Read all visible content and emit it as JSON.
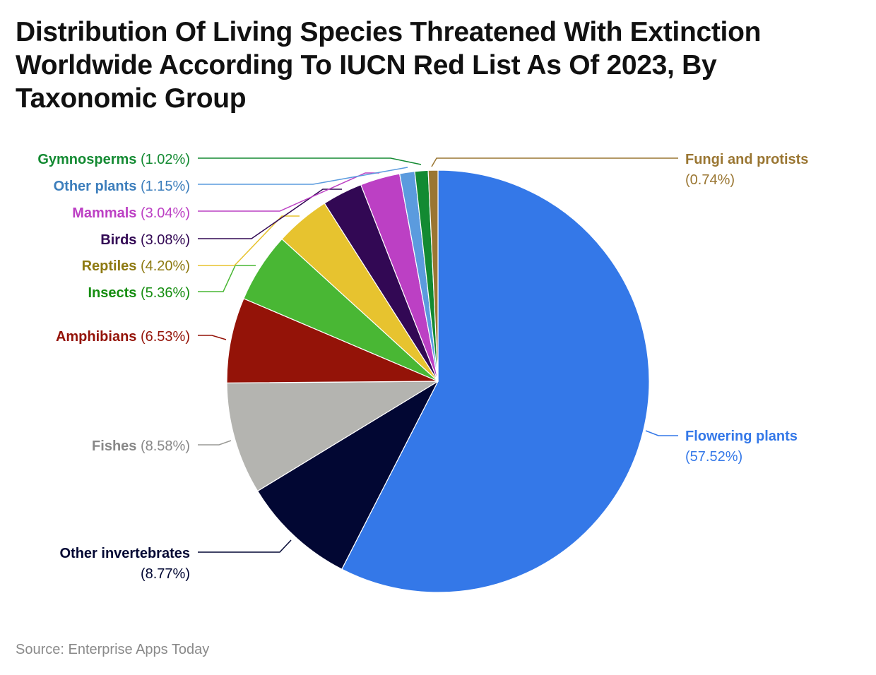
{
  "title": "Distribution Of Living Species Threatened With Extinction Worldwide According To IUCN Red List As Of 2023, By Taxonomic Group",
  "source": "Source: Enterprise Apps Today",
  "chart_data": {
    "type": "pie",
    "legend": "none (labels with leader lines)",
    "slices": [
      {
        "label": "Flowering plants",
        "value": 57.52,
        "display": "(57.52%)",
        "color": "#3478E8",
        "text_color": "#3478E8"
      },
      {
        "label": "Other invertebrates",
        "value": 8.77,
        "display": "(8.77%)",
        "color": "#020733",
        "text_color": "#020733"
      },
      {
        "label": "Fishes",
        "value": 8.58,
        "display": "(8.58%)",
        "color": "#B4B4B0",
        "text_color": "#888888"
      },
      {
        "label": "Amphibians",
        "value": 6.53,
        "display": "(6.53%)",
        "color": "#941308",
        "text_color": "#941308"
      },
      {
        "label": "Insects",
        "value": 5.36,
        "display": "(5.36%)",
        "color": "#49B734",
        "text_color": "#158D10"
      },
      {
        "label": "Reptiles",
        "value": 4.2,
        "display": "(4.20%)",
        "color": "#E7C32F",
        "text_color": "#8E7A12"
      },
      {
        "label": "Birds",
        "value": 3.08,
        "display": "(3.08%)",
        "color": "#320854",
        "text_color": "#320854"
      },
      {
        "label": "Mammals",
        "value": 3.04,
        "display": "(3.04%)",
        "color": "#BC40C4",
        "text_color": "#BC40C4"
      },
      {
        "label": "Other plants",
        "value": 1.15,
        "display": "(1.15%)",
        "color": "#5B9BDE",
        "text_color": "#3C7EBC"
      },
      {
        "label": "Gymnosperms",
        "value": 1.02,
        "display": "(1.02%)",
        "color": "#138A32",
        "text_color": "#138A32"
      },
      {
        "label": "Fungi and protists",
        "value": 0.74,
        "display": "(0.74%)",
        "color": "#9A7632",
        "text_color": "#9A7632"
      }
    ]
  }
}
